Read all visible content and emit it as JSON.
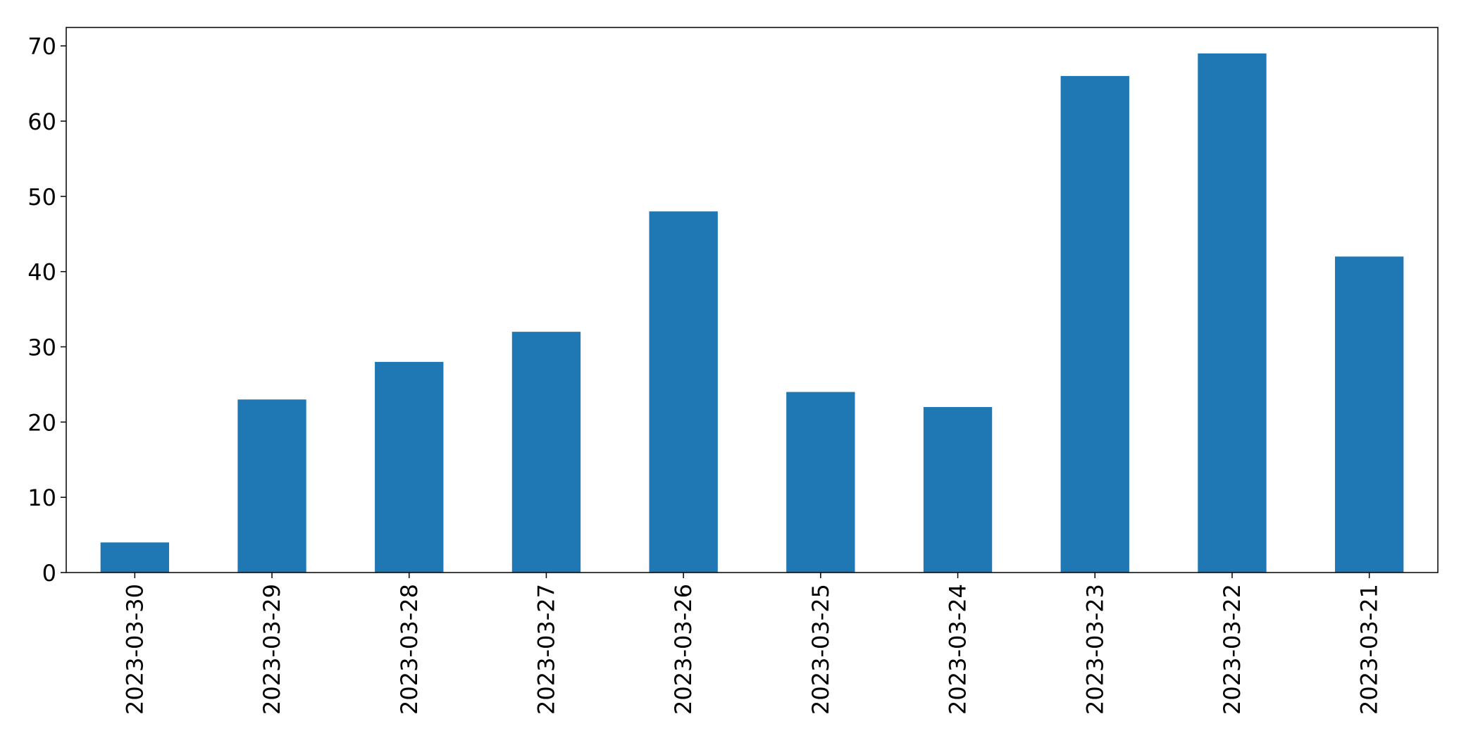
{
  "chart_data": {
    "type": "bar",
    "title": "",
    "xlabel": "",
    "ylabel": "",
    "categories": [
      "2023-03-30",
      "2023-03-29",
      "2023-03-28",
      "2023-03-27",
      "2023-03-26",
      "2023-03-25",
      "2023-03-24",
      "2023-03-23",
      "2023-03-22",
      "2023-03-21"
    ],
    "values": [
      4,
      23,
      28,
      32,
      48,
      24,
      22,
      66,
      69,
      42
    ],
    "ylim": [
      0,
      72.45
    ],
    "yticks": [
      0,
      10,
      20,
      30,
      40,
      50,
      60,
      70
    ],
    "grid": false,
    "legend": "none",
    "bar_color": "#1f77b4",
    "axis_color": "#000000"
  }
}
